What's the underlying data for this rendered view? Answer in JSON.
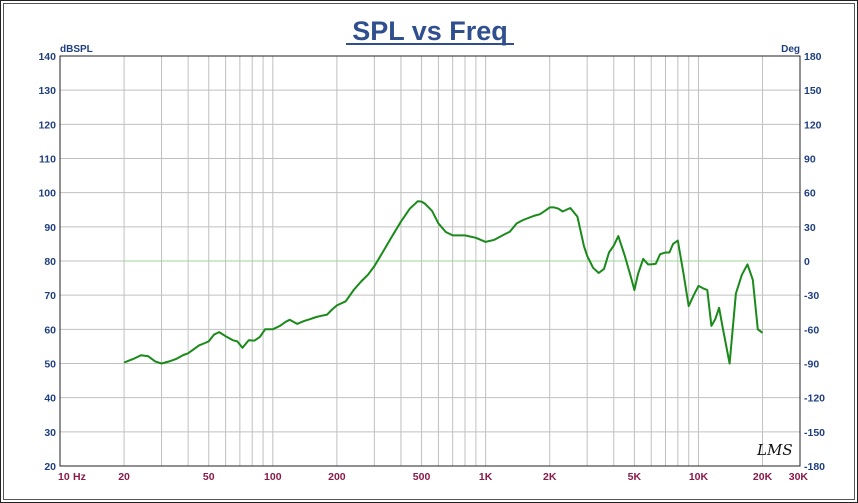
{
  "chart_data": {
    "type": "line",
    "title": "SPL vs Freq",
    "xscale": "log",
    "xlim": [
      10,
      30000
    ],
    "ylim": [
      20,
      140
    ],
    "y2lim": [
      -180,
      180
    ],
    "ylabel": "dBSPL",
    "y2label": "Deg",
    "x_unit": "Hz",
    "x_ticks": [
      {
        "v": 10,
        "label": "10"
      },
      {
        "v": 20,
        "label": "20"
      },
      {
        "v": 50,
        "label": "50"
      },
      {
        "v": 100,
        "label": "100"
      },
      {
        "v": 200,
        "label": "200"
      },
      {
        "v": 500,
        "label": "500"
      },
      {
        "v": 1000,
        "label": "1K"
      },
      {
        "v": 2000,
        "label": "2K"
      },
      {
        "v": 5000,
        "label": "5K"
      },
      {
        "v": 10000,
        "label": "10K"
      },
      {
        "v": 20000,
        "label": "20K"
      },
      {
        "v": 30000,
        "label": "30K"
      }
    ],
    "y_ticks": [
      140,
      130,
      120,
      110,
      100,
      90,
      80,
      70,
      60,
      50,
      40,
      30,
      20
    ],
    "y2_ticks": [
      180,
      150,
      120,
      90,
      60,
      30,
      0,
      -30,
      -60,
      -90,
      -120,
      -150,
      -180
    ],
    "grid": true,
    "zero_phase_line": 0,
    "series": [
      {
        "color": "#1a8a1a",
        "x": [
          20,
          22,
          24,
          26,
          28,
          30,
          33,
          35,
          38,
          40,
          45,
          48,
          50,
          53,
          56,
          60,
          65,
          68,
          72,
          77,
          82,
          87,
          92,
          100,
          108,
          115,
          120,
          130,
          140,
          150,
          160,
          170,
          180,
          190,
          200,
          220,
          240,
          260,
          280,
          300,
          330,
          360,
          400,
          440,
          480,
          500,
          520,
          560,
          600,
          650,
          700,
          800,
          900,
          1000,
          1100,
          1200,
          1300,
          1400,
          1500,
          1700,
          1800,
          1900,
          2000,
          2100,
          2200,
          2300,
          2500,
          2700,
          2900,
          3000,
          3200,
          3400,
          3600,
          3800,
          4000,
          4200,
          4500,
          4800,
          5000,
          5200,
          5500,
          5800,
          6000,
          6300,
          6600,
          7000,
          7300,
          7600,
          8000,
          8500,
          9000,
          9500,
          10000,
          10500,
          11000,
          11500,
          12000,
          12500,
          13000,
          14000,
          15000,
          16000,
          17000,
          18000,
          19000,
          20000
        ],
        "y": [
          50.3,
          51.3,
          52.4,
          52.1,
          50.6,
          50.0,
          50.7,
          51.3,
          52.5,
          53.0,
          55.3,
          56.0,
          56.5,
          58.5,
          59.2,
          58.0,
          56.8,
          56.5,
          54.6,
          56.8,
          56.7,
          57.8,
          60.0,
          60.0,
          61.0,
          62.2,
          62.8,
          61.6,
          62.4,
          63.0,
          63.6,
          64.0,
          64.3,
          65.8,
          67.0,
          68.2,
          71.5,
          74.0,
          76.0,
          78.5,
          82.8,
          86.8,
          91.5,
          95.3,
          97.5,
          97.4,
          96.7,
          94.7,
          91.0,
          88.5,
          87.5,
          87.5,
          86.8,
          85.6,
          86.2,
          87.5,
          88.6,
          91.0,
          92.0,
          93.3,
          93.7,
          94.7,
          95.7,
          95.7,
          95.3,
          94.5,
          95.5,
          93.0,
          84.3,
          81.5,
          78.0,
          76.5,
          77.7,
          82.5,
          84.5,
          87.3,
          81.6,
          75.6,
          71.5,
          76.2,
          80.6,
          79.0,
          79.0,
          79.2,
          82.0,
          82.5,
          82.5,
          85.0,
          86.0,
          76.5,
          66.8,
          70.0,
          72.7,
          72.0,
          71.5,
          61.0,
          63.0,
          66.3,
          60.5,
          50.0,
          70.5,
          76.0,
          79.0,
          74.5,
          60.0,
          59.0
        ]
      }
    ]
  },
  "watermark": "LMS"
}
